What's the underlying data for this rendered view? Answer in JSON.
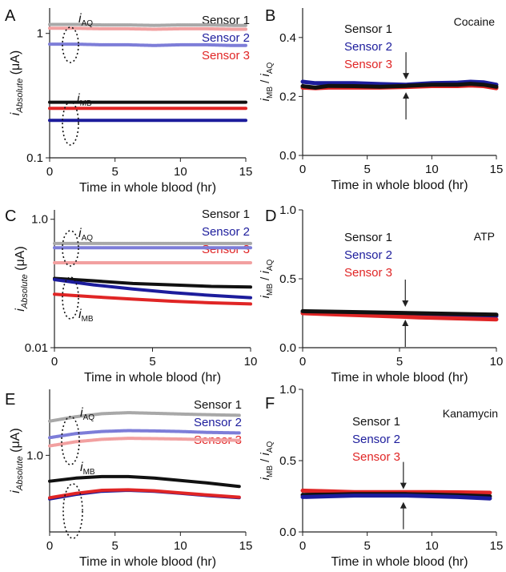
{
  "chart_data": [
    {
      "panel": "A",
      "type": "line",
      "y_scale": "log",
      "ylabel": "iAbsolute (μA)",
      "xlabel": "Time in whole blood (hr)",
      "xlim": [
        0,
        15
      ],
      "ylim": [
        0.1,
        1.6
      ],
      "xticks": [
        0,
        5,
        10,
        15
      ],
      "yticks": [
        0.1,
        1
      ],
      "yticklabels": [
        "0.1",
        "1"
      ],
      "annotations": {
        "aq": "AQ",
        "mb": "MB"
      },
      "legend": [
        "Sensor 1",
        "Sensor 2",
        "Sensor 3"
      ],
      "series": [
        {
          "name": "Sensor 1",
          "group": "AQ",
          "x": [
            0,
            2,
            4,
            6,
            8,
            10,
            12,
            14,
            15
          ],
          "y": [
            1.18,
            1.18,
            1.17,
            1.17,
            1.16,
            1.17,
            1.17,
            1.16,
            1.16
          ]
        },
        {
          "name": "Sensor 3",
          "group": "AQ",
          "x": [
            0,
            2,
            4,
            6,
            8,
            10,
            12,
            14,
            15
          ],
          "y": [
            1.1,
            1.1,
            1.09,
            1.09,
            1.08,
            1.09,
            1.09,
            1.08,
            1.08
          ]
        },
        {
          "name": "Sensor 2",
          "group": "AQ",
          "x": [
            0,
            2,
            4,
            6,
            8,
            10,
            12,
            14,
            15
          ],
          "y": [
            0.82,
            0.82,
            0.81,
            0.81,
            0.8,
            0.81,
            0.81,
            0.8,
            0.8
          ]
        },
        {
          "name": "Sensor 1",
          "group": "MB",
          "x": [
            0,
            5,
            10,
            15
          ],
          "y": [
            0.28,
            0.28,
            0.28,
            0.28
          ]
        },
        {
          "name": "Sensor 3",
          "group": "MB",
          "x": [
            0,
            5,
            10,
            15
          ],
          "y": [
            0.25,
            0.25,
            0.25,
            0.25
          ]
        },
        {
          "name": "Sensor 2",
          "group": "MB",
          "x": [
            0,
            5,
            10,
            15
          ],
          "y": [
            0.2,
            0.2,
            0.2,
            0.2
          ]
        }
      ]
    },
    {
      "panel": "B",
      "type": "line",
      "title": "Cocaine",
      "ylabel": "iMB / iAQ",
      "xlabel": "Time in whole blood (hr)",
      "xlim": [
        0,
        15
      ],
      "ylim": [
        0,
        0.5
      ],
      "xticks": [
        0,
        5,
        10,
        15
      ],
      "yticks": [
        0.0,
        0.2,
        0.4
      ],
      "yticklabels": [
        "0.0",
        "0.2",
        "0.4"
      ],
      "arrow_x": 8,
      "legend": [
        "Sensor 1",
        "Sensor 2",
        "Sensor 3"
      ],
      "series": [
        {
          "name": "Sensor 2",
          "x": [
            0,
            1,
            2,
            4,
            6,
            8,
            10,
            12,
            13,
            14,
            15
          ],
          "y": [
            0.25,
            0.245,
            0.245,
            0.245,
            0.242,
            0.24,
            0.245,
            0.247,
            0.25,
            0.248,
            0.24
          ]
        },
        {
          "name": "Sensor 3",
          "x": [
            0,
            1,
            2,
            4,
            6,
            8,
            10,
            12,
            13,
            14,
            15
          ],
          "y": [
            0.23,
            0.228,
            0.23,
            0.23,
            0.23,
            0.232,
            0.235,
            0.235,
            0.237,
            0.235,
            0.228
          ]
        },
        {
          "name": "Sensor 1",
          "x": [
            0,
            1,
            2,
            4,
            6,
            8,
            10,
            12,
            13,
            14,
            15
          ],
          "y": [
            0.235,
            0.23,
            0.236,
            0.235,
            0.233,
            0.236,
            0.24,
            0.24,
            0.243,
            0.24,
            0.233
          ]
        }
      ]
    },
    {
      "panel": "C",
      "type": "line",
      "y_scale": "log",
      "ylabel": "iAbsolute (μA)",
      "xlabel": "Time in whole blood (hr)",
      "xlim": [
        0,
        10
      ],
      "ylim": [
        0.01,
        1.4
      ],
      "xticks": [
        0,
        5,
        10
      ],
      "yticks": [
        0.01,
        1.0
      ],
      "yticklabels": [
        "0.01",
        "1.0"
      ],
      "annotations": {
        "aq": "AQ",
        "mb": "MB"
      },
      "legend": [
        "Sensor 1",
        "Sensor 2",
        "Sensor 3"
      ],
      "series": [
        {
          "name": "Sensor 1",
          "group": "AQ",
          "x": [
            0,
            5,
            10
          ],
          "y": [
            0.42,
            0.42,
            0.42
          ]
        },
        {
          "name": "Sensor 2",
          "group": "AQ",
          "x": [
            0,
            5,
            10
          ],
          "y": [
            0.36,
            0.36,
            0.36
          ]
        },
        {
          "name": "Sensor 3",
          "group": "AQ",
          "x": [
            0,
            5,
            10
          ],
          "y": [
            0.21,
            0.21,
            0.21
          ]
        },
        {
          "name": "Sensor 1",
          "group": "MB",
          "x": [
            0,
            2,
            4,
            6,
            8,
            10
          ],
          "y": [
            0.12,
            0.11,
            0.1,
            0.095,
            0.09,
            0.088
          ]
        },
        {
          "name": "Sensor 2",
          "group": "MB",
          "x": [
            0,
            2,
            4,
            6,
            8,
            10
          ],
          "y": [
            0.115,
            0.095,
            0.082,
            0.072,
            0.065,
            0.06
          ]
        },
        {
          "name": "Sensor 3",
          "group": "MB",
          "x": [
            0,
            2,
            4,
            6,
            8,
            10
          ],
          "y": [
            0.068,
            0.062,
            0.057,
            0.053,
            0.05,
            0.048
          ]
        }
      ]
    },
    {
      "panel": "D",
      "type": "line",
      "title": "ATP",
      "ylabel": "iMB / iAQ",
      "xlabel": "Time in whole blood (hr)",
      "xlim": [
        0,
        10
      ],
      "ylim": [
        0,
        1.0
      ],
      "xticks": [
        0,
        5,
        10
      ],
      "yticks": [
        0.0,
        0.5,
        1.0
      ],
      "yticklabels": [
        "0.0",
        "0.5",
        "1.0"
      ],
      "arrow_x": 5.3,
      "legend": [
        "Sensor 1",
        "Sensor 2",
        "Sensor 3"
      ],
      "series": [
        {
          "name": "Sensor 2",
          "x": [
            0,
            2,
            4,
            6,
            8,
            10
          ],
          "y": [
            0.255,
            0.25,
            0.245,
            0.24,
            0.235,
            0.23
          ]
        },
        {
          "name": "Sensor 3",
          "x": [
            0,
            2,
            4,
            6,
            8,
            10
          ],
          "y": [
            0.25,
            0.24,
            0.23,
            0.22,
            0.212,
            0.205
          ]
        },
        {
          "name": "Sensor 1",
          "x": [
            0,
            2,
            4,
            6,
            8,
            10
          ],
          "y": [
            0.265,
            0.26,
            0.255,
            0.25,
            0.245,
            0.24
          ]
        }
      ]
    },
    {
      "panel": "E",
      "type": "line",
      "y_scale": "log",
      "ylabel": "iAbsolute (μA)",
      "xlabel": "Time in whole blood (hr)",
      "xlim": [
        0,
        15
      ],
      "ylim": [
        0.2,
        4.0
      ],
      "xticks": [
        0,
        5,
        10,
        15
      ],
      "yticks": [
        1.0
      ],
      "yticklabels": [
        "1.0"
      ],
      "annotations": {
        "aq": "AQ",
        "mb": "MB"
      },
      "legend": [
        "Sensor 1",
        "Sensor 2",
        "Sensor 3"
      ],
      "series": [
        {
          "name": "Sensor 1",
          "group": "AQ",
          "x": [
            0,
            2,
            4,
            6,
            8,
            10,
            12,
            14.5
          ],
          "y": [
            2.05,
            2.25,
            2.4,
            2.45,
            2.42,
            2.38,
            2.35,
            2.32
          ]
        },
        {
          "name": "Sensor 2",
          "group": "AQ",
          "x": [
            0,
            2,
            4,
            6,
            8,
            10,
            12,
            14.5
          ],
          "y": [
            1.45,
            1.58,
            1.65,
            1.68,
            1.67,
            1.65,
            1.62,
            1.6
          ]
        },
        {
          "name": "Sensor 3",
          "group": "AQ",
          "x": [
            0,
            2,
            4,
            6,
            8,
            10,
            12,
            14.5
          ],
          "y": [
            1.22,
            1.33,
            1.4,
            1.43,
            1.42,
            1.41,
            1.39,
            1.37
          ]
        },
        {
          "name": "Sensor 1",
          "group": "MB",
          "x": [
            0,
            2,
            4,
            6,
            8,
            10,
            12,
            14.5
          ],
          "y": [
            0.58,
            0.62,
            0.64,
            0.64,
            0.62,
            0.59,
            0.56,
            0.52
          ]
        },
        {
          "name": "Sensor 2",
          "group": "MB",
          "x": [
            0,
            2,
            4,
            6,
            8,
            10,
            12,
            14.5
          ],
          "y": [
            0.4,
            0.44,
            0.47,
            0.48,
            0.47,
            0.45,
            0.43,
            0.41
          ]
        },
        {
          "name": "Sensor 3",
          "group": "MB",
          "x": [
            0,
            2,
            4,
            6,
            8,
            10,
            12,
            14.5
          ],
          "y": [
            0.41,
            0.45,
            0.48,
            0.485,
            0.475,
            0.455,
            0.435,
            0.415
          ]
        }
      ]
    },
    {
      "panel": "F",
      "type": "line",
      "title": "Kanamycin",
      "ylabel": "iMB / iAQ",
      "xlabel": "Time in whole blood (hr)",
      "xlim": [
        0,
        15
      ],
      "ylim": [
        0,
        1.0
      ],
      "xticks": [
        0,
        5,
        10,
        15
      ],
      "yticks": [
        0.0,
        0.5,
        1.0
      ],
      "yticklabels": [
        "0.0",
        "0.5",
        "1.0"
      ],
      "arrow_x": 7.8,
      "legend": [
        "Sensor 1",
        "Sensor 2",
        "Sensor 3"
      ],
      "series": [
        {
          "name": "Sensor 3",
          "x": [
            0,
            2,
            4,
            6,
            8,
            10,
            12,
            14.5
          ],
          "y": [
            0.29,
            0.285,
            0.28,
            0.28,
            0.28,
            0.28,
            0.278,
            0.275
          ]
        },
        {
          "name": "Sensor 1",
          "x": [
            0,
            2,
            4,
            6,
            8,
            10,
            12,
            14.5
          ],
          "y": [
            0.26,
            0.262,
            0.265,
            0.265,
            0.265,
            0.262,
            0.258,
            0.25
          ]
        },
        {
          "name": "Sensor 2",
          "x": [
            0,
            2,
            4,
            6,
            8,
            10,
            12,
            14.5
          ],
          "y": [
            0.245,
            0.25,
            0.255,
            0.255,
            0.255,
            0.25,
            0.245,
            0.235
          ]
        }
      ]
    }
  ],
  "colors": {
    "Sensor 1": "#111111",
    "Sensor 2": "#1c1c9c",
    "Sensor 3": "#e02525",
    "Sensor 1 AQ": "#a8a8a8",
    "Sensor 2 AQ": "#7d7dd8",
    "Sensor 3 AQ": "#f2a0a0"
  }
}
